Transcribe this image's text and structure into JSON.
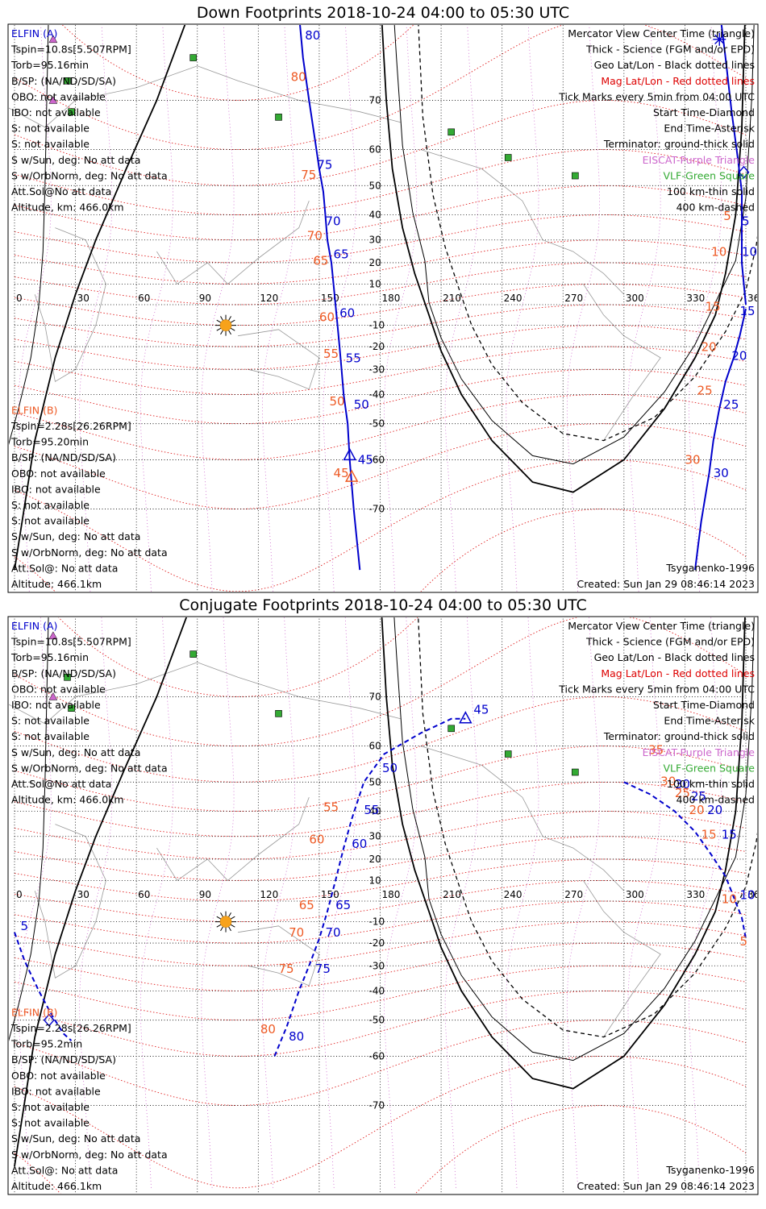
{
  "colors": {
    "black": "#000000",
    "blue": "#0000cc",
    "orange": "#ee5a24",
    "red": "#dd0000",
    "purple": "#cc66cc",
    "green": "#33aa33",
    "magGrid": "#e02020",
    "geoGrid": "#000000",
    "coast": "#999999"
  },
  "panels": [
    {
      "title": "Down Footprints 2018-10-24 04:00 to 05:30 UTC",
      "left_info": {
        "a_header": "ELFIN (A)",
        "a_lines": [
          "Tspin=10.8s[5.507RPM]",
          "Torb=95.16min",
          "B/SP: (NA/ND/SD/SA)",
          "OBO: not available",
          "IBO: not available",
          "S: not available",
          "S: not available",
          "S w/Sun, deg: No att data",
          "S w/OrbNorm, deg: No att data",
          "Att.Sol@No att data",
          "Altitude, km: 466.0km"
        ],
        "b_header": "ELFIN (B)",
        "b_lines": [
          "Tspin=2.28s[26.26RPM]",
          "Torb=95.20min",
          "B/SP: (NA/ND/SD/SA)",
          "OBO: not available",
          "IBO: not available",
          "S: not available",
          "S: not available",
          "S w/Sun, deg: No att data",
          "S w/OrbNorm, deg: No att data",
          "Att.Sol@: No att data",
          "Altitude: 466.1km"
        ]
      },
      "legend": [
        {
          "text": "Mercator View Center Time (triangle)",
          "color": "#000000"
        },
        {
          "text": "Thick - Science (FGM and/or EPD)",
          "color": "#000000"
        },
        {
          "text": "Geo Lat/Lon - Black dotted lines",
          "color": "#000000"
        },
        {
          "text": "Mag Lat/Lon - Red dotted lines",
          "color": "#dd0000"
        },
        {
          "text": "Tick Marks every 5min from 04:00 UTC",
          "color": "#000000"
        },
        {
          "text": "Start Time-Diamond",
          "color": "#000000"
        },
        {
          "text": "End Time-Asterisk",
          "color": "#000000"
        },
        {
          "text": "Terminator: ground-thick solid",
          "color": "#000000"
        },
        {
          "text": "EISCAT-Purple Triangle",
          "color": "#cc66cc"
        },
        {
          "text": "VLF-Green Square",
          "color": "#33aa33"
        },
        {
          "text": "100 km-thin solid",
          "color": "#000000"
        },
        {
          "text": "400 km-dashed",
          "color": "#000000"
        }
      ],
      "model": "Tsyganenko-1996",
      "created": "Created: Sun Jan 29 08:46:14 2023"
    },
    {
      "title": "Conjugate Footprints 2018-10-24 04:00 to 05:30 UTC",
      "left_info": {
        "a_header": "ELFIN (A)",
        "a_lines": [
          "Tspin=10.8s[5.507RPM]",
          "Torb=95.16min",
          "B/SP: (NA/ND/SD/SA)",
          "OBO: not available",
          "IBO: not available",
          "S: not available",
          "S: not available",
          "S w/Sun, deg: No att data",
          "S w/OrbNorm, deg: No att data",
          "Att.Sol@No att data",
          "Altitude, km: 466.0km"
        ],
        "b_header": "ELFIN (B)",
        "b_lines": [
          "Tspin=2.28s[26.26RPM]",
          "Torb=95.2min",
          "B/SP: (NA/ND/SD/SA)",
          "OBO: not available",
          "IBO: not available",
          "S: not available",
          "S: not available",
          "S w/Sun, deg: No att data",
          "S w/OrbNorm, deg: No att data",
          "Att.Sol@: No att data",
          "Altitude: 466.1km"
        ]
      },
      "legend": [
        {
          "text": "Mercator View Center Time (triangle)",
          "color": "#000000"
        },
        {
          "text": "Thick - Science (FGM and/or EPD)",
          "color": "#000000"
        },
        {
          "text": "Geo Lat/Lon - Black dotted lines",
          "color": "#000000"
        },
        {
          "text": "Mag Lat/Lon - Red dotted lines",
          "color": "#dd0000"
        },
        {
          "text": "Tick Marks every 5min from 04:00 UTC",
          "color": "#000000"
        },
        {
          "text": "Start Time-Diamond",
          "color": "#000000"
        },
        {
          "text": "End Time-Asterisk",
          "color": "#000000"
        },
        {
          "text": "Terminator: ground-thick solid",
          "color": "#000000"
        },
        {
          "text": "EISCAT-Purple Triangle",
          "color": "#cc66cc"
        },
        {
          "text": "VLF-Green Square",
          "color": "#33aa33"
        },
        {
          "text": "100 km-thin solid",
          "color": "#000000"
        },
        {
          "text": "400 km-dashed",
          "color": "#000000"
        }
      ],
      "model": "Tsyganenko-1996",
      "created": "Created: Sun Jan 29 08:46:14 2023"
    }
  ],
  "chart_data": [
    {
      "type": "line",
      "title": "Down Footprints 2018-10-24 04:00 to 05:30 UTC",
      "projection": "mercator",
      "xlim": [
        0,
        360
      ],
      "ylim": [
        -80,
        80
      ],
      "lon_ticks": [
        0,
        30,
        60,
        90,
        120,
        150,
        180,
        210,
        240,
        270,
        300,
        330,
        360
      ],
      "lat_ticks": [
        70,
        60,
        50,
        40,
        30,
        20,
        10,
        0,
        -10,
        -20,
        -30,
        -40,
        -50,
        -60,
        -70
      ],
      "tracks": [
        {
          "name": "ELFIN (A) 100km",
          "style": "solid",
          "color": "#0000cc",
          "points": [
            [
              139,
              82
            ],
            [
              142,
              76
            ],
            [
              145,
              70
            ],
            [
              148,
              62
            ],
            [
              150,
              55
            ],
            [
              152,
              48
            ],
            [
              153,
              40
            ],
            [
              154,
              30
            ],
            [
              156,
              20
            ],
            [
              157,
              10
            ],
            [
              158,
              0
            ],
            [
              159,
              -10
            ],
            [
              160,
              -20
            ],
            [
              161,
              -30
            ],
            [
              162,
              -40
            ],
            [
              164,
              -50
            ],
            [
              165,
              -60
            ],
            [
              167,
              -70
            ],
            [
              170,
              -78
            ]
          ]
        },
        {
          "name": "ELFIN (B) right 100km",
          "style": "solid",
          "color": "#0000cc",
          "points": [
            [
              346,
              82
            ],
            [
              350,
              76
            ],
            [
              353,
              68
            ],
            [
              356,
              58
            ],
            [
              358,
              48
            ],
            [
              358,
              35
            ],
            [
              358,
              20
            ],
            [
              359,
              10
            ],
            [
              360,
              0
            ]
          ]
        },
        {
          "name": "ELFIN (B) left 100km",
          "style": "solid",
          "color": "#0000cc",
          "points": [
            [
              360,
              -2
            ],
            [
              357,
              -15
            ],
            [
              354,
              -25
            ],
            [
              350,
              -35
            ],
            [
              347,
              -45
            ],
            [
              344,
              -55
            ],
            [
              342,
              -63
            ],
            [
              338,
              -72
            ],
            [
              335,
              -78
            ]
          ]
        }
      ],
      "blue_labels": [
        {
          "text": "80",
          "lon": 143,
          "lat": 78
        },
        {
          "text": "75",
          "lon": 149,
          "lat": 55
        },
        {
          "text": "70",
          "lon": 153,
          "lat": 36
        },
        {
          "text": "65",
          "lon": 157,
          "lat": 22
        },
        {
          "text": "60",
          "lon": 160,
          "lat": -6
        },
        {
          "text": "55",
          "lon": 163,
          "lat": -27
        },
        {
          "text": "50",
          "lon": 167,
          "lat": -45
        },
        {
          "text": "45",
          "lon": 169,
          "lat": -61
        },
        {
          "text": "5",
          "lon": 358,
          "lat": 36
        },
        {
          "text": "10",
          "lon": 358,
          "lat": 23
        },
        {
          "text": "15",
          "lon": 357,
          "lat": -5
        },
        {
          "text": "20",
          "lon": 353,
          "lat": -26
        },
        {
          "text": "25",
          "lon": 349,
          "lat": -45
        },
        {
          "text": "30",
          "lon": 344,
          "lat": -64
        }
      ],
      "orange_labels": [
        {
          "text": "80",
          "lon": 136,
          "lat": 73
        },
        {
          "text": "75",
          "lon": 141,
          "lat": 52
        },
        {
          "text": "70",
          "lon": 144,
          "lat": 30
        },
        {
          "text": "65",
          "lon": 147,
          "lat": 19
        },
        {
          "text": "60",
          "lon": 150,
          "lat": -8
        },
        {
          "text": "55",
          "lon": 152,
          "lat": -25
        },
        {
          "text": "50",
          "lon": 155,
          "lat": -44
        },
        {
          "text": "45",
          "lon": 157,
          "lat": -64
        },
        {
          "text": "5",
          "lon": 349,
          "lat": 38
        },
        {
          "text": "10",
          "lon": 343,
          "lat": 23
        },
        {
          "text": "15",
          "lon": 340,
          "lat": -3
        },
        {
          "text": "20",
          "lon": 338,
          "lat": -22
        },
        {
          "text": "25",
          "lon": 336,
          "lat": -40
        },
        {
          "text": "30",
          "lon": 330,
          "lat": -61
        }
      ],
      "terminator_ground": [
        [
          180,
          82
        ],
        [
          183,
          70
        ],
        [
          186,
          55
        ],
        [
          191,
          35
        ],
        [
          197,
          15
        ],
        [
          204,
          -5
        ],
        [
          210,
          -22
        ],
        [
          220,
          -40
        ],
        [
          235,
          -55
        ],
        [
          255,
          -65
        ],
        [
          275,
          -67
        ],
        [
          300,
          -60
        ],
        [
          320,
          -45
        ],
        [
          335,
          -25
        ],
        [
          345,
          -5
        ],
        [
          350,
          15
        ],
        [
          355,
          40
        ],
        [
          358,
          65
        ],
        [
          360,
          82
        ]
      ],
      "sun": {
        "lon": 104,
        "lat": -10
      },
      "center_time_triangles": [
        {
          "lon": 165,
          "lat": -59,
          "color": "#0000cc"
        },
        {
          "lon": 166,
          "lat": -64,
          "color": "#ee5a24"
        }
      ],
      "vlf_sites": [
        [
          88,
          76
        ],
        [
          26,
          73
        ],
        [
          28,
          68
        ],
        [
          130,
          67
        ],
        [
          215,
          64
        ],
        [
          243,
          58
        ],
        [
          276,
          53
        ]
      ],
      "eiscat": [
        [
          19,
          70
        ],
        [
          19,
          78
        ]
      ]
    },
    {
      "type": "line",
      "title": "Conjugate Footprints 2018-10-24 04:00 to 05:30 UTC",
      "projection": "mercator",
      "xlim": [
        0,
        360
      ],
      "ylim": [
        -80,
        80
      ],
      "lon_ticks": [
        0,
        30,
        60,
        90,
        120,
        150,
        180,
        210,
        240,
        270,
        300,
        330,
        360
      ],
      "lat_ticks": [
        70,
        60,
        50,
        40,
        30,
        20,
        10,
        0,
        -10,
        -20,
        -30,
        -40,
        -50,
        -60,
        -70
      ],
      "tracks": [
        {
          "name": "ELFIN (A) conjugate",
          "style": "dashed",
          "color": "#0000cc",
          "points": [
            [
              128,
              -60
            ],
            [
              134,
              -52
            ],
            [
              140,
              -40
            ],
            [
              145,
              -30
            ],
            [
              150,
              -18
            ],
            [
              154,
              -5
            ],
            [
              158,
              10
            ],
            [
              162,
              25
            ],
            [
              166,
              37
            ],
            [
              172,
              50
            ],
            [
              182,
              58
            ],
            [
              200,
              63
            ],
            [
              215,
              66
            ],
            [
              222,
              66
            ]
          ]
        },
        {
          "name": "ELFIN (B) conjugate right",
          "style": "dashed",
          "color": "#0000cc",
          "points": [
            [
              300,
              50
            ],
            [
              313,
              46
            ],
            [
              325,
              40
            ],
            [
              335,
              32
            ],
            [
              343,
              22
            ],
            [
              350,
              12
            ],
            [
              354,
              2
            ],
            [
              358,
              -8
            ],
            [
              360,
              -18
            ]
          ]
        },
        {
          "name": "ELFIN (B) conjugate left",
          "style": "dashed",
          "color": "#0000cc",
          "points": [
            [
              0,
              -15
            ],
            [
              5,
              -28
            ],
            [
              12,
              -40
            ],
            [
              18,
              -48
            ],
            [
              24,
              -54
            ],
            [
              28,
              -56
            ]
          ]
        }
      ],
      "blue_labels": [
        {
          "text": "45",
          "lon": 226,
          "lat": 67
        },
        {
          "text": "50",
          "lon": 181,
          "lat": 53
        },
        {
          "text": "55",
          "lon": 172,
          "lat": 39
        },
        {
          "text": "60",
          "lon": 166,
          "lat": 25
        },
        {
          "text": "65",
          "lon": 158,
          "lat": -4
        },
        {
          "text": "70",
          "lon": 153,
          "lat": -17
        },
        {
          "text": "75",
          "lon": 148,
          "lat": -33
        },
        {
          "text": "80",
          "lon": 135,
          "lat": -56
        },
        {
          "text": "30",
          "lon": 325,
          "lat": 48
        },
        {
          "text": "25",
          "lon": 333,
          "lat": 44
        },
        {
          "text": "20",
          "lon": 341,
          "lat": 39
        },
        {
          "text": "15",
          "lon": 348,
          "lat": 29
        },
        {
          "text": "10",
          "lon": 357,
          "lat": 1
        },
        {
          "text": "5",
          "lon": 3,
          "lat": -14
        }
      ],
      "orange_labels": [
        {
          "text": "55",
          "lon": 152,
          "lat": 40
        },
        {
          "text": "60",
          "lon": 145,
          "lat": 27
        },
        {
          "text": "65",
          "lon": 140,
          "lat": -4
        },
        {
          "text": "70",
          "lon": 135,
          "lat": -17
        },
        {
          "text": "75",
          "lon": 130,
          "lat": -33
        },
        {
          "text": "80",
          "lon": 121,
          "lat": -54
        },
        {
          "text": "35",
          "lon": 312,
          "lat": 58
        },
        {
          "text": "30",
          "lon": 318,
          "lat": 49
        },
        {
          "text": "25",
          "lon": 325,
          "lat": 45
        },
        {
          "text": "20",
          "lon": 332,
          "lat": 39
        },
        {
          "text": "15",
          "lon": 338,
          "lat": 29
        },
        {
          "text": "10",
          "lon": 348,
          "lat": -1
        },
        {
          "text": "5",
          "lon": 357,
          "lat": -21
        }
      ],
      "terminator_ground": [
        [
          180,
          82
        ],
        [
          183,
          70
        ],
        [
          186,
          55
        ],
        [
          191,
          35
        ],
        [
          197,
          15
        ],
        [
          204,
          -5
        ],
        [
          210,
          -22
        ],
        [
          220,
          -40
        ],
        [
          235,
          -55
        ],
        [
          255,
          -65
        ],
        [
          275,
          -67
        ],
        [
          300,
          -60
        ],
        [
          320,
          -45
        ],
        [
          335,
          -25
        ],
        [
          345,
          -5
        ],
        [
          350,
          15
        ],
        [
          355,
          40
        ],
        [
          358,
          65
        ],
        [
          360,
          82
        ]
      ],
      "sun": {
        "lon": 104,
        "lat": -10
      },
      "center_time_triangles": [
        {
          "lon": 222,
          "lat": 66,
          "color": "#0000cc"
        }
      ],
      "vlf_sites": [
        [
          88,
          76
        ],
        [
          26,
          73
        ],
        [
          28,
          68
        ],
        [
          130,
          67
        ],
        [
          215,
          64
        ],
        [
          243,
          58
        ],
        [
          276,
          53
        ]
      ],
      "eiscat": [
        [
          19,
          70
        ],
        [
          19,
          78
        ]
      ]
    }
  ]
}
